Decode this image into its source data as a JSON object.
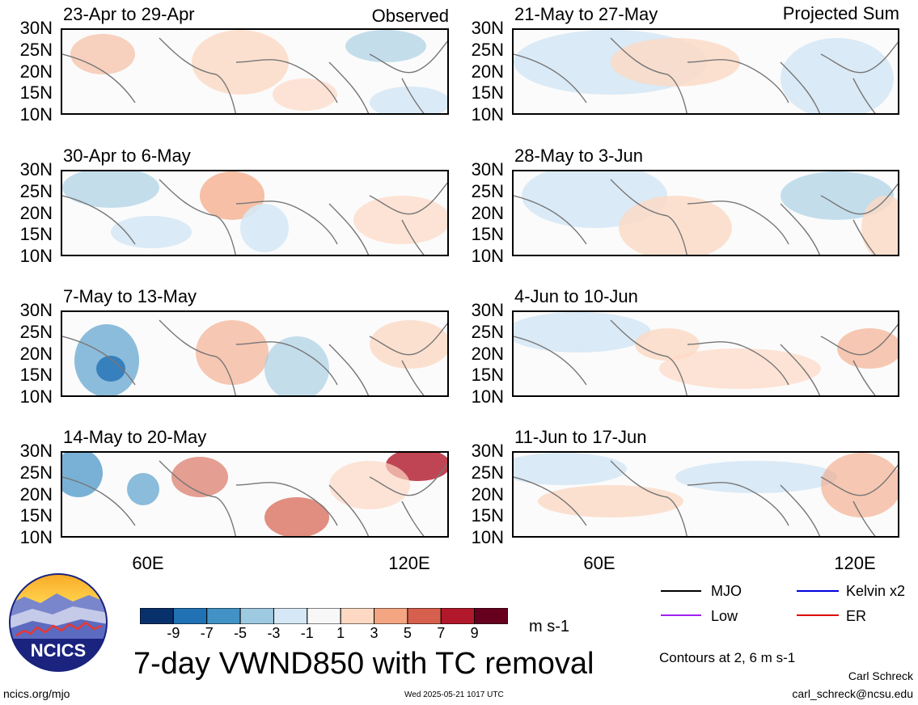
{
  "header": {
    "left_mode": "Observed",
    "right_mode": "Projected Sum"
  },
  "lat_ticks": [
    "30N",
    "25N",
    "20N",
    "15N",
    "10N"
  ],
  "lon_ticks": [
    "60E",
    "120E"
  ],
  "panels_left": [
    {
      "title": "23-Apr to 29-Apr"
    },
    {
      "title": "30-Apr to 6-May"
    },
    {
      "title": "7-May to 13-May"
    },
    {
      "title": "14-May to 20-May"
    }
  ],
  "panels_right": [
    {
      "title": "21-May to 27-May"
    },
    {
      "title": "28-May to 3-Jun"
    },
    {
      "title": "4-Jun to 10-Jun"
    },
    {
      "title": "11-Jun to 17-Jun"
    }
  ],
  "colorbar": {
    "colors": [
      "#08306b",
      "#2171b5",
      "#4292c6",
      "#9ecae1",
      "#d6e8f5",
      "#f7f7f7",
      "#fdd9c4",
      "#f4a582",
      "#d6604d",
      "#b2182b",
      "#67001f"
    ],
    "labels": [
      "-9",
      "-7",
      "-5",
      "-3",
      "-1",
      "1",
      "3",
      "5",
      "7",
      "9"
    ],
    "units": "m s-1"
  },
  "legend": {
    "items": [
      {
        "label": "MJO",
        "color": "#000000"
      },
      {
        "label": "Kelvin x2",
        "color": "#0000dd"
      },
      {
        "label": "Low",
        "color": "#a020f0"
      },
      {
        "label": "ER",
        "color": "#dd0000"
      }
    ],
    "note": "Contours at 2, 6 m s-1"
  },
  "title": "7-day VWND850 with TC removal",
  "logo_text": "NCICS",
  "footer": {
    "url": "ncics.org/mjo",
    "timestamp": "Wed 2025-05-21 1017 UTC",
    "author": "Carl Schreck",
    "email": "carl_schreck@ncsu.edu"
  }
}
